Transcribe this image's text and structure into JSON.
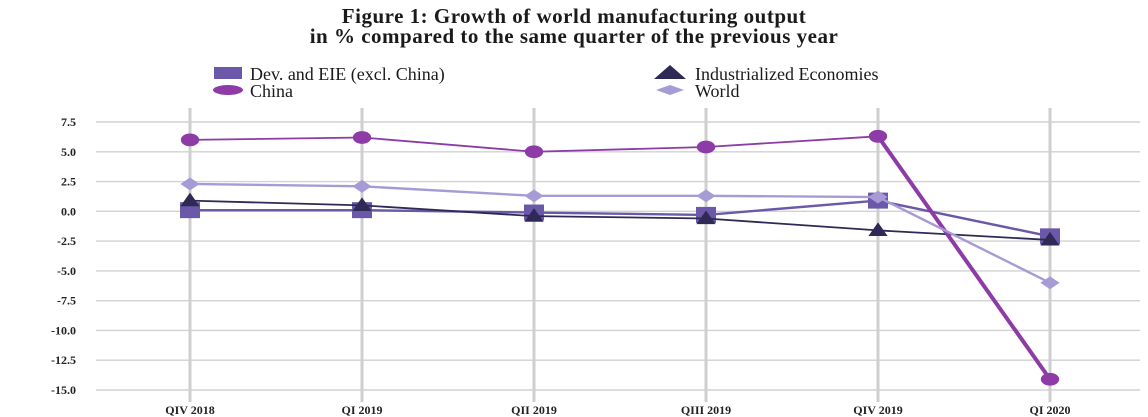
{
  "chart_data": {
    "type": "line",
    "title_line1": "Figure 1: Growth of world manufacturing output",
    "title_line2": "in % compared to the same quarter of the previous year",
    "xlabel": "",
    "ylabel": "",
    "categories": [
      "QIV 2018",
      "QI 2019",
      "QII 2019",
      "QIII 2019",
      "QIV 2019",
      "QI 2020"
    ],
    "ylim": [
      -15.0,
      7.5
    ],
    "yticks": [
      "7.5",
      "5.0",
      "2.5",
      "0.0",
      "-2.5",
      "-5.0",
      "-7.5",
      "-10.0",
      "-12.5",
      "-15.0"
    ],
    "grid": "horizontal and vertical",
    "legend_position": "top",
    "series": [
      {
        "name": "Dev. and EIE (excl. China)",
        "marker": "square",
        "color": "#6b58a8",
        "values": [
          0.1,
          0.1,
          -0.1,
          -0.3,
          0.9,
          -2.1
        ]
      },
      {
        "name": "Industrialized Economies",
        "marker": "triangle",
        "color": "#2e2a55",
        "values": [
          0.9,
          0.5,
          -0.4,
          -0.6,
          -1.6,
          -2.4
        ]
      },
      {
        "name": "China",
        "marker": "circle",
        "color": "#8d3ba6",
        "values": [
          6.0,
          6.2,
          5.0,
          5.4,
          6.3,
          -14.1
        ]
      },
      {
        "name": "World",
        "marker": "diamond",
        "color": "#a79bd6",
        "values": [
          2.3,
          2.1,
          1.3,
          1.3,
          1.2,
          -6.0
        ]
      }
    ]
  }
}
